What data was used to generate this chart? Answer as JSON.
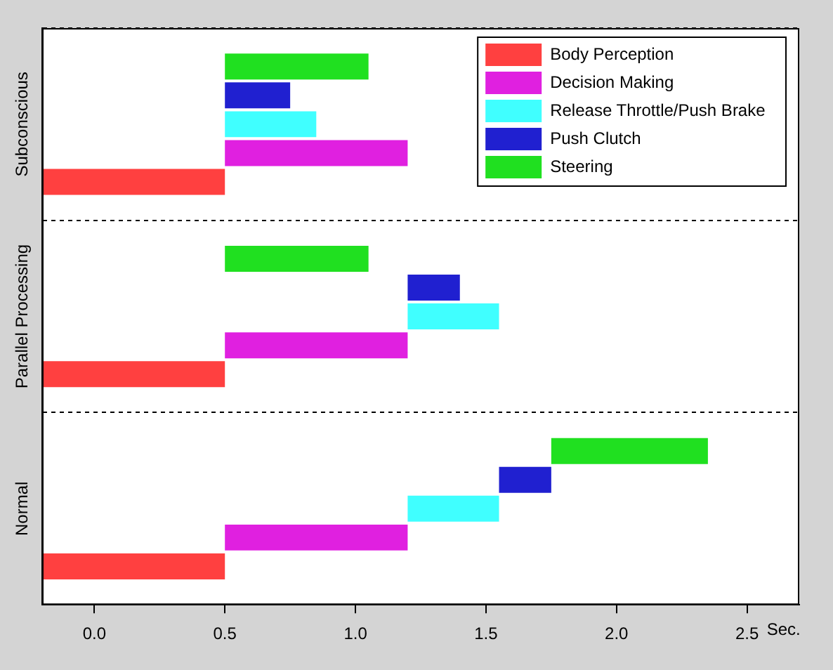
{
  "chart_data": {
    "type": "bar",
    "orientation": "horizontal",
    "categories": [
      "Subconscious",
      "Parallel Processing",
      "Normal"
    ],
    "series": [
      {
        "name": "Body Perception",
        "color": "#ff4040",
        "base": [
          -0.2,
          -0.2,
          -0.2
        ],
        "values": [
          0.7,
          0.7,
          0.7
        ]
      },
      {
        "name": "Decision Making",
        "color": "#e020e0",
        "base": [
          0.5,
          0.5,
          0.5
        ],
        "values": [
          0.7,
          0.7,
          0.7
        ]
      },
      {
        "name": "Release Throttle/Push Brake",
        "color": "#40ffff",
        "base": [
          0.5,
          1.2,
          1.2
        ],
        "values": [
          0.35,
          0.35,
          0.35
        ]
      },
      {
        "name": "Push Clutch",
        "color": "#2020d0",
        "base": [
          0.5,
          1.2,
          1.55
        ],
        "values": [
          0.25,
          0.2,
          0.2
        ]
      },
      {
        "name": "Steering",
        "color": "#20e020",
        "base": [
          0.5,
          0.5,
          1.75
        ],
        "values": [
          0.55,
          0.55,
          0.6
        ]
      }
    ],
    "xlabel": "Sec.",
    "xlim": [
      -0.2,
      2.7
    ],
    "xticks": [
      {
        "value": 0,
        "label": "0.0"
      },
      {
        "value": 0.5,
        "label": "0.5"
      },
      {
        "value": 1,
        "label": "1.0"
      },
      {
        "value": 1.5,
        "label": "1.5"
      },
      {
        "value": 2,
        "label": "2.0"
      },
      {
        "value": 2.5,
        "label": "2.5"
      }
    ],
    "grid": "y",
    "legend": "top right"
  }
}
